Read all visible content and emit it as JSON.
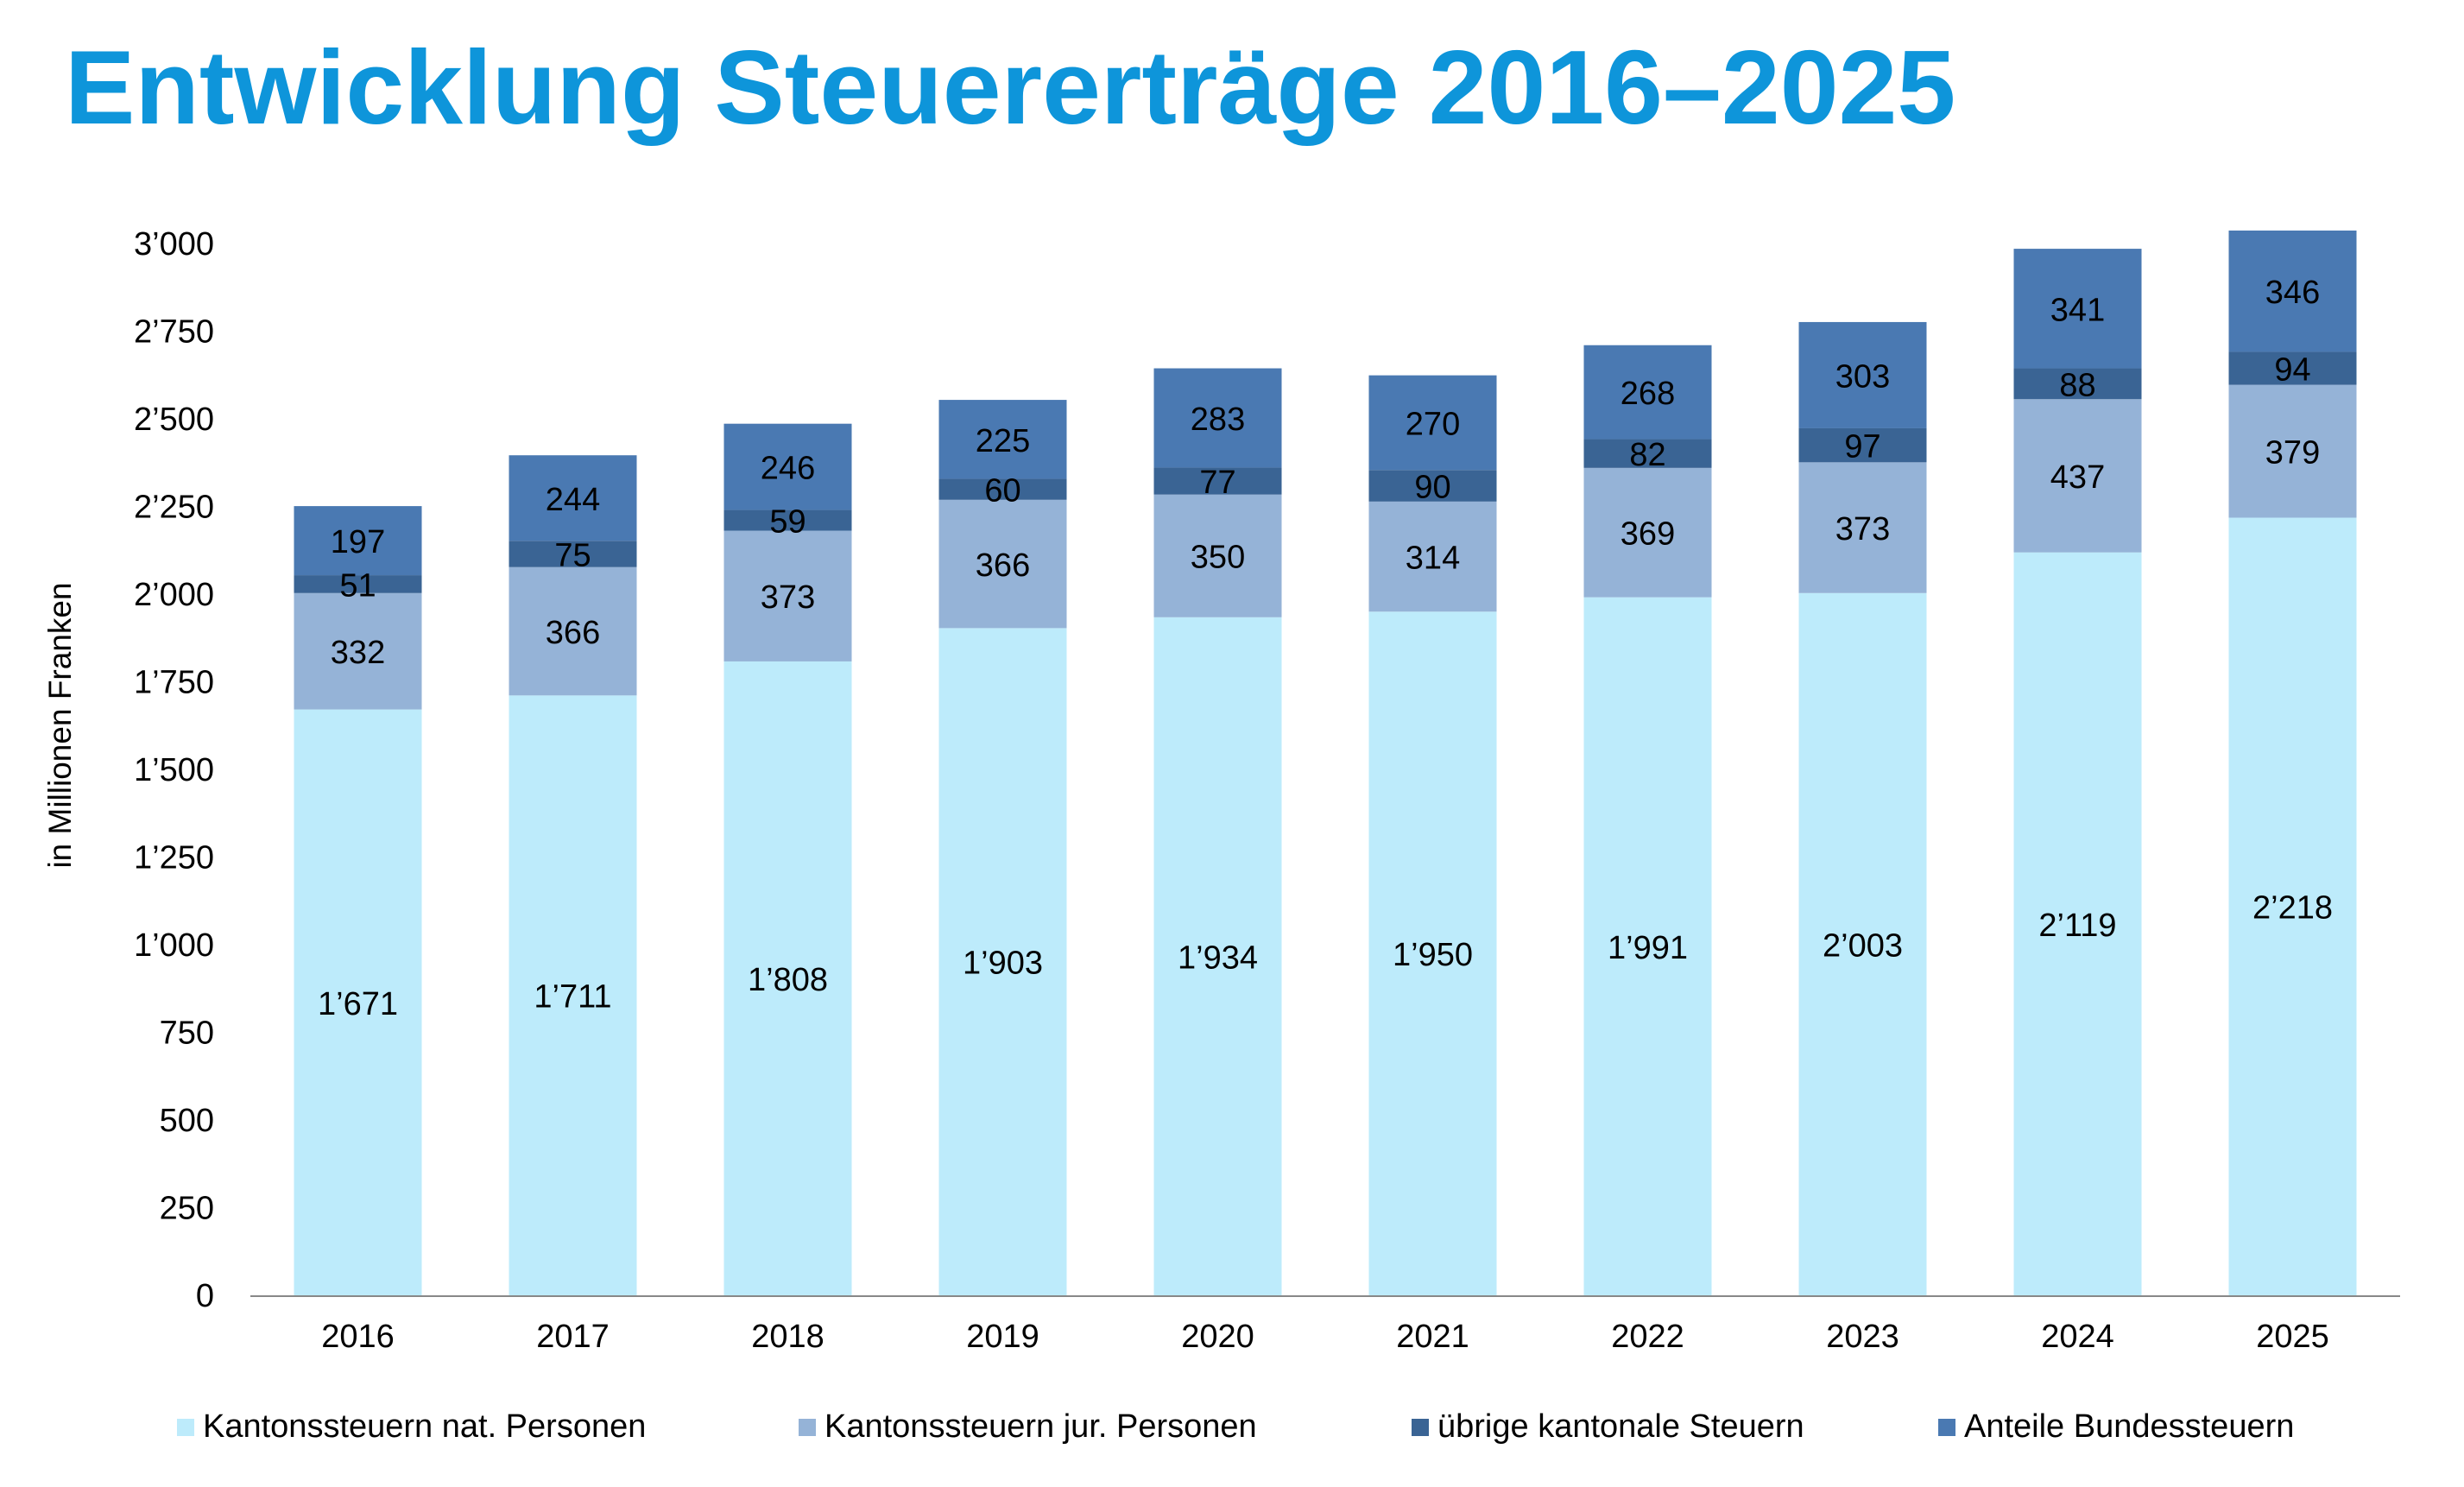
{
  "chart_data": {
    "type": "bar",
    "stacked": true,
    "title": "Entwicklung Steuererträge 2016–2025",
    "ylabel": "in Millionen Franken",
    "xlabel": "",
    "categories": [
      "2016",
      "2017",
      "2018",
      "2019",
      "2020",
      "2021",
      "2022",
      "2023",
      "2024",
      "2025"
    ],
    "ylim": [
      0,
      3000
    ],
    "yticks": [
      0,
      250,
      500,
      750,
      1000,
      1250,
      1500,
      1750,
      2000,
      2250,
      2500,
      2750,
      3000
    ],
    "ytick_labels": [
      "0",
      "250",
      "500",
      "750",
      "1’000",
      "1’250",
      "1’500",
      "1’750",
      "2’000",
      "2’250",
      "2’500",
      "2’750",
      "3’000"
    ],
    "grid": false,
    "legend_position": "bottom",
    "series": [
      {
        "name": "Kantonssteuern nat. Personen",
        "color": "#BDEBFB",
        "values": [
          1671,
          1711,
          1808,
          1903,
          1934,
          1950,
          1991,
          2003,
          2119,
          2218
        ],
        "labels": [
          "1’671",
          "1’711",
          "1’808",
          "1’903",
          "1’934",
          "1’950",
          "1’991",
          "2’003",
          "2’119",
          "2’218"
        ]
      },
      {
        "name": "Kantonssteuern jur. Personen",
        "color": "#95B3D7",
        "values": [
          332,
          366,
          373,
          366,
          350,
          314,
          369,
          373,
          437,
          379
        ],
        "labels": [
          "332",
          "366",
          "373",
          "366",
          "350",
          "314",
          "369",
          "373",
          "437",
          "379"
        ]
      },
      {
        "name": "übrige kantonale Steuern",
        "color": "#3A6494",
        "values": [
          51,
          75,
          59,
          60,
          77,
          90,
          82,
          97,
          88,
          94
        ],
        "labels": [
          "51",
          "75",
          "59",
          "60",
          "77",
          "90",
          "82",
          "97",
          "88",
          "94"
        ]
      },
      {
        "name": "Anteile Bundessteuern",
        "color": "#4A79B2",
        "values": [
          197,
          244,
          246,
          225,
          283,
          270,
          268,
          303,
          341,
          346
        ],
        "labels": [
          "197",
          "244",
          "246",
          "225",
          "283",
          "270",
          "268",
          "303",
          "341",
          "346"
        ]
      }
    ]
  }
}
